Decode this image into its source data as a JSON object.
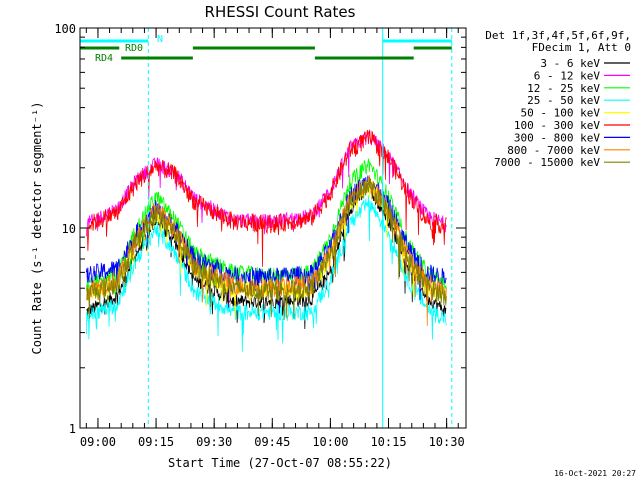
{
  "chart_data": {
    "type": "line",
    "title": "RHESSI Count Rates",
    "xlabel": "Start Time (27-Oct-07 08:55:22)",
    "ylabel": "Count Rate (s⁻¹ detector segment⁻¹)",
    "y_scale": "log",
    "ylim": [
      1,
      100
    ],
    "y_ticks": [
      1,
      10,
      100
    ],
    "y_tick_labels": [
      "1",
      "10",
      "100"
    ],
    "xlim": [
      "08:55:22",
      "10:35:00"
    ],
    "x_ticks": [
      "09:00",
      "09:15",
      "09:30",
      "09:45",
      "10:00",
      "10:15",
      "10:30"
    ],
    "x_tick_labels": [
      "09:00",
      "09:15",
      "09:30",
      "09:45",
      "10:00",
      "10:15",
      "10:30"
    ],
    "legend": {
      "placement": "right, outside plot",
      "header": [
        "Det 1f,3f,4f,5f,6f,9f,",
        "FDecim 1, Att 0"
      ]
    },
    "timestamp": "16-Oct-2021 20:27",
    "series": [
      {
        "name": "3 - 6 keV",
        "color": "#000000",
        "x": [
          "08:57",
          "09:05",
          "09:10",
          "09:15",
          "09:20",
          "09:25",
          "09:35",
          "09:45",
          "09:55",
          "10:00",
          "10:05",
          "10:10",
          "10:15",
          "10:20",
          "10:25",
          "10:30"
        ],
        "y": [
          3.8,
          4.6,
          7.5,
          11.0,
          8.5,
          5.5,
          4.3,
          4.3,
          4.4,
          6.0,
          12.5,
          16.0,
          11.0,
          6.5,
          4.5,
          3.8
        ]
      },
      {
        "name": "6 - 12 keV",
        "color": "#ff00ff",
        "x": [
          "08:57",
          "09:05",
          "09:10",
          "09:15",
          "09:20",
          "09:25",
          "09:35",
          "09:45",
          "09:55",
          "10:00",
          "10:05",
          "10:10",
          "10:15",
          "10:20",
          "10:25",
          "10:30"
        ],
        "y": [
          10.5,
          12.5,
          17.5,
          21.0,
          19.0,
          14.0,
          11.0,
          10.8,
          11.5,
          15.5,
          25.0,
          29.0,
          23.0,
          15.5,
          11.5,
          10.5
        ]
      },
      {
        "name": "12 - 25 keV",
        "color": "#00ff00",
        "x": [
          "08:57",
          "09:05",
          "09:10",
          "09:15",
          "09:20",
          "09:25",
          "09:35",
          "09:45",
          "09:55",
          "10:00",
          "10:05",
          "10:10",
          "10:15",
          "10:20",
          "10:25",
          "10:30"
        ],
        "y": [
          5.3,
          6.0,
          10.0,
          14.5,
          11.0,
          7.5,
          6.0,
          5.8,
          6.0,
          9.0,
          17.0,
          21.0,
          14.5,
          8.5,
          6.0,
          5.2
        ]
      },
      {
        "name": "25 - 50 keV",
        "color": "#00ffff",
        "x": [
          "08:57",
          "09:05",
          "09:10",
          "09:15",
          "09:20",
          "09:25",
          "09:35",
          "09:45",
          "09:55",
          "10:00",
          "10:05",
          "10:10",
          "10:15",
          "10:20",
          "10:25",
          "10:30"
        ],
        "y": [
          3.6,
          4.2,
          7.0,
          10.0,
          7.5,
          4.8,
          3.8,
          3.8,
          3.8,
          5.5,
          10.5,
          13.5,
          9.5,
          5.5,
          4.0,
          3.5
        ]
      },
      {
        "name": "50 - 100 keV",
        "color": "#ffff00",
        "x": [
          "08:57",
          "09:05",
          "09:10",
          "09:15",
          "09:20",
          "09:25",
          "09:35",
          "09:45",
          "09:55",
          "10:00",
          "10:05",
          "10:10",
          "10:15",
          "10:20",
          "10:25",
          "10:30"
        ],
        "y": [
          4.6,
          5.2,
          8.5,
          12.0,
          9.5,
          6.2,
          4.9,
          4.9,
          5.0,
          7.2,
          13.5,
          16.5,
          12.0,
          7.0,
          5.0,
          4.6
        ]
      },
      {
        "name": "100 - 300 keV",
        "color": "#ff0000",
        "x": [
          "08:57",
          "09:05",
          "09:10",
          "09:15",
          "09:20",
          "09:25",
          "09:35",
          "09:45",
          "09:55",
          "10:00",
          "10:05",
          "10:10",
          "10:15",
          "10:20",
          "10:25",
          "10:30"
        ],
        "y": [
          10.3,
          12.0,
          17.0,
          20.5,
          18.5,
          13.5,
          10.8,
          10.5,
          11.2,
          15.0,
          24.5,
          28.5,
          22.5,
          15.0,
          11.0,
          10.2
        ]
      },
      {
        "name": "300 - 800 keV",
        "color": "#0000ff",
        "x": [
          "08:57",
          "09:05",
          "09:10",
          "09:15",
          "09:20",
          "09:25",
          "09:35",
          "09:45",
          "09:55",
          "10:00",
          "10:05",
          "10:10",
          "10:15",
          "10:20",
          "10:25",
          "10:30"
        ],
        "y": [
          5.8,
          6.3,
          9.5,
          12.5,
          10.0,
          7.0,
          5.8,
          5.7,
          5.9,
          8.0,
          14.5,
          17.5,
          13.0,
          8.0,
          6.0,
          5.6
        ]
      },
      {
        "name": "800 - 7000 keV",
        "color": "#ff8000",
        "x": [
          "08:57",
          "09:05",
          "09:10",
          "09:15",
          "09:20",
          "09:25",
          "09:35",
          "09:45",
          "09:55",
          "10:00",
          "10:05",
          "10:10",
          "10:15",
          "10:20",
          "10:25",
          "10:30"
        ],
        "y": [
          4.9,
          5.5,
          9.0,
          12.5,
          9.8,
          6.5,
          5.2,
          5.1,
          5.2,
          7.5,
          14.0,
          17.0,
          12.5,
          7.3,
          5.3,
          4.8
        ]
      },
      {
        "name": "7000 - 15000 keV",
        "color": "#808000",
        "x": [
          "08:57",
          "09:05",
          "09:10",
          "09:15",
          "09:20",
          "09:25",
          "09:35",
          "09:45",
          "09:55",
          "10:00",
          "10:05",
          "10:10",
          "10:15",
          "10:20",
          "10:25",
          "10:30"
        ],
        "y": [
          4.7,
          5.3,
          8.7,
          12.0,
          9.5,
          6.3,
          5.0,
          4.9,
          5.0,
          7.3,
          13.5,
          16.5,
          12.0,
          7.0,
          5.1,
          4.6
        ]
      }
    ],
    "vertical_markers": [
      {
        "time": "08:55:22",
        "color": "#00ffff",
        "style": "solid"
      },
      {
        "time": "09:13:00",
        "color": "#00ffff",
        "style": "dashed"
      },
      {
        "time": "10:13:30",
        "color": "#00ffff",
        "style": "solid"
      },
      {
        "time": "10:31:20",
        "color": "#00ffff",
        "style": "dashed"
      }
    ],
    "flags": [
      {
        "label": "N",
        "color": "#00ffff",
        "intervals": [
          [
            "08:55:22",
            "09:13:00"
          ],
          [
            "10:13:30",
            "10:31:20"
          ]
        ]
      },
      {
        "label": "RD0",
        "color": "#008000",
        "intervals": [
          [
            "08:55:22",
            "09:05:30"
          ],
          [
            "09:24:30",
            "09:56:00"
          ],
          [
            "10:21:30",
            "10:31:20"
          ]
        ]
      },
      {
        "label": "RD4",
        "color": "#008000",
        "intervals": [
          [
            "09:06:00",
            "09:24:30"
          ],
          [
            "09:56:00",
            "10:21:30"
          ]
        ]
      }
    ]
  }
}
